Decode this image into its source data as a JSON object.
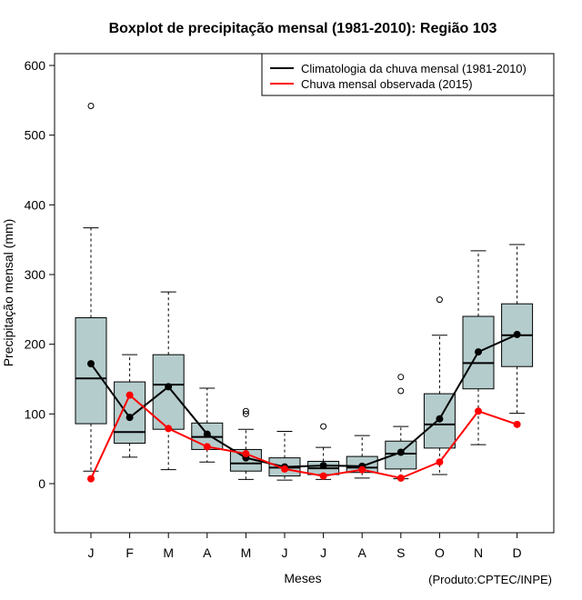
{
  "chart_data": {
    "type": "boxplot",
    "title": "Boxplot de precipitação mensal (1981-2010): Região 103",
    "xlabel": "Meses",
    "ylabel": "Precipitação mensal (mm)",
    "credit": "(Produto:CPTEC/INPE)",
    "ylim": [
      -70,
      620
    ],
    "yticks": [
      0,
      100,
      200,
      300,
      400,
      500,
      600
    ],
    "categories": [
      "J",
      "F",
      "M",
      "A",
      "M",
      "J",
      "J",
      "A",
      "S",
      "O",
      "N",
      "D"
    ],
    "boxes": [
      {
        "low": 18,
        "q1": 86,
        "median": 151,
        "q3": 238,
        "high": 367,
        "outliers": [
          542
        ]
      },
      {
        "low": 38,
        "q1": 58,
        "median": 74,
        "q3": 146,
        "high": 185,
        "outliers": []
      },
      {
        "low": 20,
        "q1": 78,
        "median": 142,
        "q3": 185,
        "high": 275,
        "outliers": []
      },
      {
        "low": 31,
        "q1": 49,
        "median": 67,
        "q3": 87,
        "high": 137,
        "outliers": []
      },
      {
        "low": 6,
        "q1": 18,
        "median": 29,
        "q3": 49,
        "high": 78,
        "outliers": [
          100,
          104
        ]
      },
      {
        "low": 5,
        "q1": 11,
        "median": 23,
        "q3": 37,
        "high": 75,
        "outliers": []
      },
      {
        "low": 6,
        "q1": 13,
        "median": 22,
        "q3": 32,
        "high": 52,
        "outliers": [
          82
        ]
      },
      {
        "low": 8,
        "q1": 16,
        "median": 23,
        "q3": 39,
        "high": 69,
        "outliers": []
      },
      {
        "low": 7,
        "q1": 21,
        "median": 43,
        "q3": 61,
        "high": 82,
        "outliers": [
          133,
          153
        ]
      },
      {
        "low": 13,
        "q1": 51,
        "median": 85,
        "q3": 129,
        "high": 213,
        "outliers": [
          264
        ]
      },
      {
        "low": 56,
        "q1": 136,
        "median": 173,
        "q3": 240,
        "high": 334,
        "outliers": []
      },
      {
        "low": 101,
        "q1": 168,
        "median": 213,
        "q3": 258,
        "high": 343,
        "outliers": []
      }
    ],
    "series": [
      {
        "name": "Climatologia da chuva mensal (1981-2010)",
        "color": "#000000",
        "values": [
          172,
          95,
          139,
          71,
          37,
          24,
          26,
          25,
          45,
          93,
          189,
          214
        ]
      },
      {
        "name": "Chuva mensal observada (2015)",
        "color": "#ff0000",
        "values": [
          7,
          127,
          79,
          53,
          43,
          21,
          11,
          20,
          8,
          31,
          104,
          85
        ]
      }
    ],
    "box_fill": "#b5cccc",
    "legend_position": "top-right"
  }
}
